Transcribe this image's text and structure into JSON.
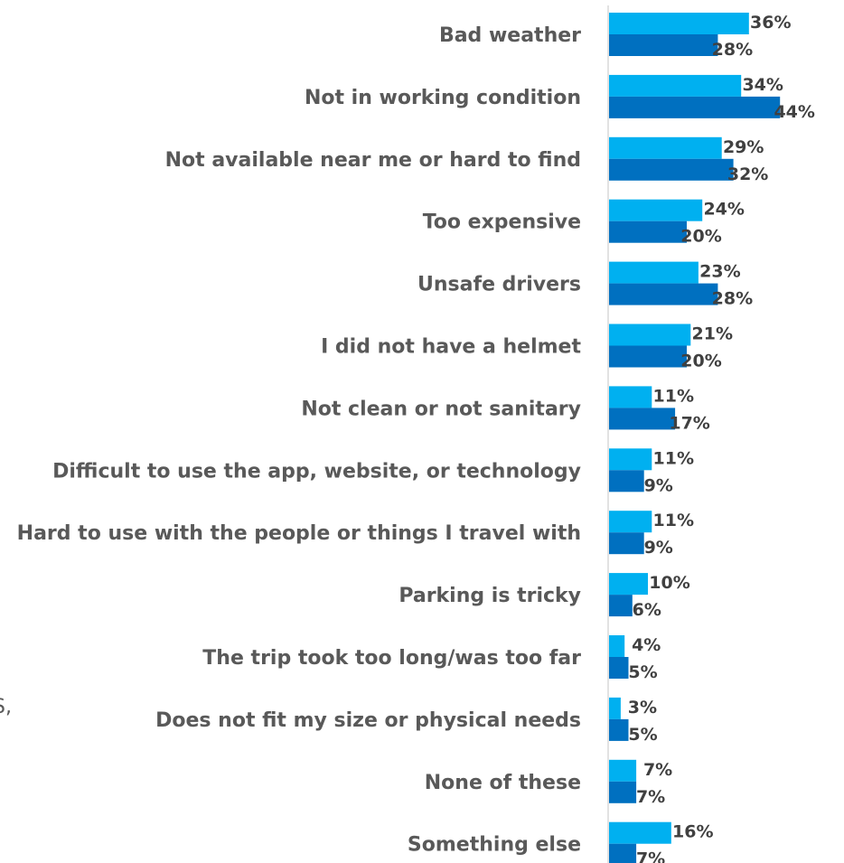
{
  "chart_data": {
    "type": "bar",
    "orientation": "horizontal",
    "categories": [
      "Bad weather",
      "Not in working condition",
      "Not available near me or hard to find",
      "Too expensive",
      "Unsafe drivers",
      "I did not have a helmet",
      "Not clean or not sanitary",
      "Difficult to use the app, website, or technology",
      "Hard to use with the people or things I travel with",
      "Parking is tricky",
      "The trip took too long/was too far",
      "Does not fit my size or physical needs",
      "None of these",
      "Something else"
    ],
    "series": [
      {
        "color": "#00b0f0",
        "values": [
          36,
          34,
          29,
          24,
          23,
          21,
          11,
          11,
          11,
          10,
          4,
          3,
          7,
          16
        ],
        "labels": [
          "36%",
          "34%",
          "29%",
          "24%",
          "23%",
          "21%",
          "11%",
          "11%",
          "11%",
          "10%",
          "4%",
          "3%",
          "7%",
          "16%"
        ]
      },
      {
        "color": "#0070c0",
        "values": [
          28,
          44,
          32,
          20,
          28,
          20,
          17,
          9,
          9,
          6,
          5,
          5,
          7,
          7
        ],
        "labels": [
          "28%",
          "44%",
          "32%",
          "20%",
          "28%",
          "20%",
          "17%",
          "9%",
          "9%",
          "6%",
          "5%",
          "5%",
          "7%",
          "7%"
        ]
      }
    ],
    "xlim": [
      0,
      50
    ],
    "grid": false,
    "axis_color": "#d9d9d9"
  },
  "stray_text": "S,"
}
